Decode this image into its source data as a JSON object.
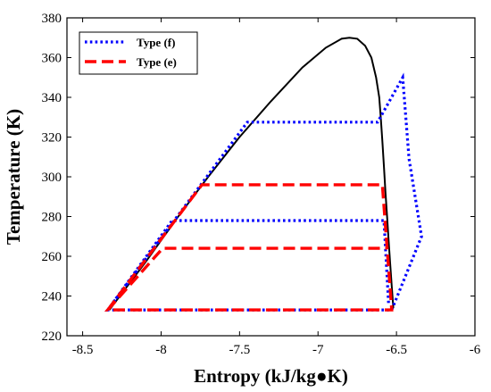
{
  "chart_data": {
    "type": "line",
    "xlabel": "Entropy (kJ/kg●K)",
    "ylabel": "Temperature (K)",
    "xlim": [
      -8.6,
      -6.0
    ],
    "ylim": [
      220,
      380
    ],
    "xticks": [
      -8.5,
      -8,
      -7.5,
      -7,
      -6.5,
      -6
    ],
    "xtick_labels": [
      "-8.5",
      "-8",
      "-7.5",
      "-7",
      "-6.5",
      "-6"
    ],
    "yticks": [
      220,
      240,
      260,
      280,
      300,
      320,
      340,
      360,
      380
    ],
    "ytick_labels": [
      "220",
      "240",
      "260",
      "280",
      "300",
      "320",
      "340",
      "360",
      "380"
    ],
    "grid": false,
    "legend_position": "top-left",
    "dome": {
      "color": "#000000",
      "x": [
        -8.33,
        -8.1,
        -7.9,
        -7.7,
        -7.5,
        -7.3,
        -7.1,
        -6.95,
        -6.85,
        -6.8,
        -6.75,
        -6.7,
        -6.66,
        -6.63,
        -6.61,
        -6.6,
        -6.59,
        -6.58,
        -6.57,
        -6.56,
        -6.55,
        -6.54,
        -6.53,
        -6.52
      ],
      "y": [
        233,
        257,
        279,
        300,
        320,
        338,
        355,
        365,
        369.5,
        370,
        369.5,
        366,
        360,
        350,
        340,
        330,
        318,
        305,
        292,
        280,
        268,
        256,
        245,
        234
      ]
    },
    "series": [
      {
        "name": "Type (f)",
        "color": "#0000FF",
        "style": "dotted",
        "x": [
          -8.34,
          -7.45,
          -6.62,
          -6.46,
          -6.42,
          -6.34,
          -6.53,
          -8.34,
          -7.93,
          -6.58,
          -6.55
        ],
        "y": [
          233,
          327.5,
          327.5,
          350,
          309,
          270,
          233,
          233,
          278,
          278,
          236
        ]
      },
      {
        "name": "Type (e)",
        "color": "#FF0000",
        "style": "dashed",
        "x": [
          -8.34,
          -7.74,
          -6.59,
          -6.53,
          -6.53,
          -8.34,
          -7.99,
          -6.56
        ],
        "y": [
          233,
          296,
          296,
          233,
          233,
          233,
          264,
          264
        ]
      }
    ]
  }
}
